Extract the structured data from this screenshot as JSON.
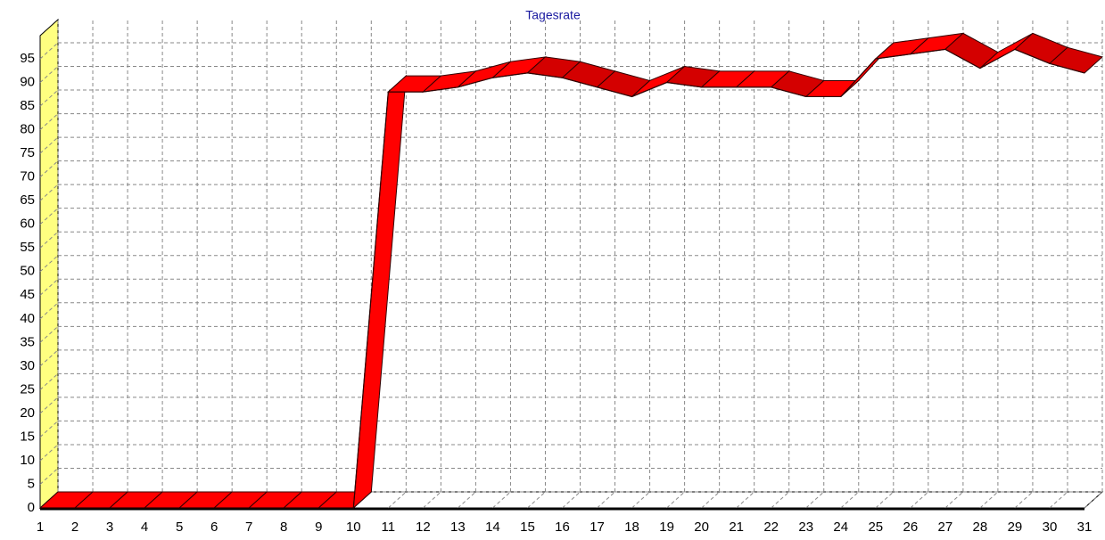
{
  "chart_data": {
    "type": "line3d",
    "title": "Tagesrate",
    "categories": [
      "1",
      "2",
      "3",
      "4",
      "5",
      "6",
      "7",
      "8",
      "9",
      "10",
      "11",
      "12",
      "13",
      "14",
      "15",
      "16",
      "17",
      "18",
      "19",
      "20",
      "21",
      "22",
      "23",
      "24",
      "25",
      "26",
      "27",
      "28",
      "29",
      "30",
      "31"
    ],
    "values": [
      0,
      0,
      0,
      0,
      0,
      0,
      0,
      0,
      0,
      0,
      88,
      88,
      89,
      91,
      92,
      91,
      89,
      87,
      90,
      89,
      89,
      89,
      87,
      87,
      95,
      96,
      97,
      93,
      97,
      94,
      92
    ],
    "color": "#ff0000",
    "ylim": [
      0,
      95
    ],
    "yticks": [
      0,
      5,
      10,
      15,
      20,
      25,
      30,
      35,
      40,
      45,
      50,
      55,
      60,
      65,
      70,
      75,
      80,
      85,
      90,
      95
    ],
    "grid": true
  }
}
